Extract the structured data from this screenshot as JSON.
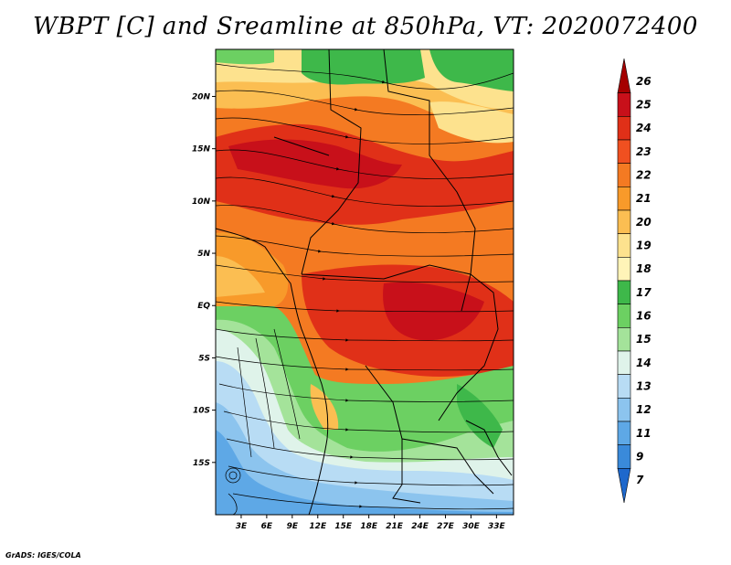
{
  "title": "WBPT [C] and Sreamline at 850hPa, VT: 2020072400",
  "credit": "GrADS: IGES/COLA",
  "map": {
    "lat_labels": [
      "20N",
      "15N",
      "10N",
      "5N",
      "EQ",
      "5S",
      "10S",
      "15S"
    ],
    "lat_values": [
      20,
      15,
      10,
      5,
      0,
      -5,
      -10,
      -15
    ],
    "lon_labels": [
      "3E",
      "6E",
      "9E",
      "12E",
      "15E",
      "18E",
      "21E",
      "24E",
      "27E",
      "30E",
      "33E"
    ],
    "lon_values": [
      3,
      6,
      9,
      12,
      15,
      18,
      21,
      24,
      27,
      30,
      33
    ],
    "lon_range": [
      0,
      35
    ],
    "lat_range": [
      -20,
      24.5
    ]
  },
  "colorbar": {
    "labels": [
      "26",
      "25",
      "24",
      "23",
      "22",
      "21",
      "20",
      "19",
      "18",
      "17",
      "16",
      "15",
      "14",
      "13",
      "12",
      "11",
      "9",
      "7"
    ],
    "colors": [
      "#a50000",
      "#c8101a",
      "#e03018",
      "#f05020",
      "#f47a22",
      "#f89a2a",
      "#fbbe52",
      "#fde28e",
      "#fff4b8",
      "#3eb84a",
      "#6cd062",
      "#a4e39a",
      "#dff3ea",
      "#b8dcf4",
      "#8cc4ee",
      "#5ea8e6",
      "#3a8ada",
      "#1e68cc"
    ]
  }
}
